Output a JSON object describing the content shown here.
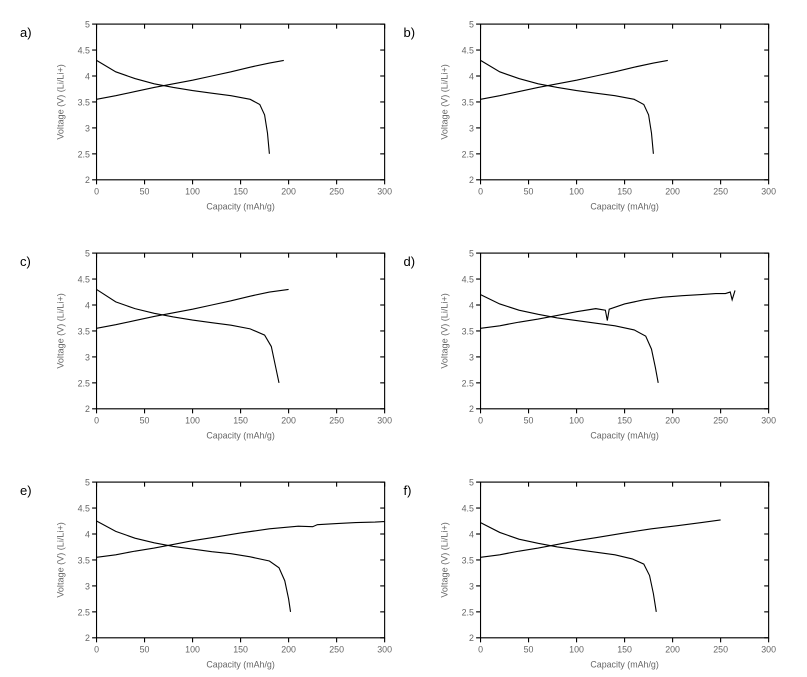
{
  "figure": {
    "layout": {
      "rows": 3,
      "cols": 2,
      "aspect": "landscape-small-multiple"
    },
    "common": {
      "xlabel": "Capacity (mAh/g)",
      "ylabel": "Voltage (V) (Li/Li+)",
      "xlim": [
        0,
        300
      ],
      "ylim": [
        2,
        5
      ],
      "xtick_step": 50,
      "ytick_step": 0.5,
      "xtick_labels": [
        "0",
        "50",
        "100",
        "150",
        "200",
        "250",
        "300"
      ],
      "ytick_labels": [
        "2",
        "2.5",
        "3",
        "3.5",
        "4",
        "4.5",
        "5"
      ],
      "label_fontsize": 8,
      "tick_fontsize": 8,
      "line_color": "#000000",
      "background_color": "#ffffff",
      "line_width": 1
    },
    "panels": [
      {
        "id": "a",
        "label": "a)",
        "curves": [
          {
            "type": "discharge",
            "points": [
              [
                0,
                4.3
              ],
              [
                20,
                4.08
              ],
              [
                40,
                3.95
              ],
              [
                60,
                3.85
              ],
              [
                80,
                3.78
              ],
              [
                100,
                3.72
              ],
              [
                120,
                3.67
              ],
              [
                140,
                3.62
              ],
              [
                160,
                3.55
              ],
              [
                170,
                3.45
              ],
              [
                175,
                3.25
              ],
              [
                178,
                2.9
              ],
              [
                180,
                2.5
              ]
            ]
          },
          {
            "type": "charge",
            "points": [
              [
                0,
                3.55
              ],
              [
                20,
                3.62
              ],
              [
                40,
                3.7
              ],
              [
                60,
                3.78
              ],
              [
                80,
                3.85
              ],
              [
                100,
                3.92
              ],
              [
                120,
                4.0
              ],
              [
                140,
                4.08
              ],
              [
                160,
                4.17
              ],
              [
                180,
                4.25
              ],
              [
                195,
                4.3
              ]
            ]
          }
        ]
      },
      {
        "id": "b",
        "label": "b)",
        "curves": [
          {
            "type": "discharge",
            "points": [
              [
                0,
                4.3
              ],
              [
                20,
                4.08
              ],
              [
                40,
                3.95
              ],
              [
                60,
                3.85
              ],
              [
                80,
                3.78
              ],
              [
                100,
                3.72
              ],
              [
                120,
                3.67
              ],
              [
                140,
                3.62
              ],
              [
                160,
                3.55
              ],
              [
                170,
                3.45
              ],
              [
                175,
                3.25
              ],
              [
                178,
                2.9
              ],
              [
                180,
                2.5
              ]
            ]
          },
          {
            "type": "charge",
            "points": [
              [
                0,
                3.55
              ],
              [
                20,
                3.62
              ],
              [
                40,
                3.7
              ],
              [
                60,
                3.78
              ],
              [
                80,
                3.85
              ],
              [
                100,
                3.92
              ],
              [
                120,
                4.0
              ],
              [
                140,
                4.08
              ],
              [
                160,
                4.17
              ],
              [
                180,
                4.25
              ],
              [
                195,
                4.3
              ]
            ]
          }
        ]
      },
      {
        "id": "c",
        "label": "c)",
        "curves": [
          {
            "type": "discharge",
            "points": [
              [
                0,
                4.3
              ],
              [
                20,
                4.06
              ],
              [
                40,
                3.93
              ],
              [
                60,
                3.84
              ],
              [
                80,
                3.77
              ],
              [
                100,
                3.71
              ],
              [
                120,
                3.66
              ],
              [
                140,
                3.61
              ],
              [
                160,
                3.54
              ],
              [
                175,
                3.42
              ],
              [
                182,
                3.2
              ],
              [
                186,
                2.85
              ],
              [
                190,
                2.5
              ]
            ]
          },
          {
            "type": "charge",
            "points": [
              [
                0,
                3.55
              ],
              [
                20,
                3.62
              ],
              [
                40,
                3.7
              ],
              [
                60,
                3.78
              ],
              [
                80,
                3.85
              ],
              [
                100,
                3.92
              ],
              [
                120,
                4.0
              ],
              [
                140,
                4.08
              ],
              [
                160,
                4.17
              ],
              [
                180,
                4.25
              ],
              [
                200,
                4.3
              ]
            ]
          }
        ]
      },
      {
        "id": "d",
        "label": "d)",
        "curves": [
          {
            "type": "discharge",
            "points": [
              [
                0,
                4.2
              ],
              [
                20,
                4.02
              ],
              [
                40,
                3.9
              ],
              [
                60,
                3.82
              ],
              [
                80,
                3.75
              ],
              [
                100,
                3.7
              ],
              [
                120,
                3.65
              ],
              [
                140,
                3.6
              ],
              [
                160,
                3.52
              ],
              [
                172,
                3.4
              ],
              [
                178,
                3.15
              ],
              [
                182,
                2.8
              ],
              [
                185,
                2.5
              ]
            ]
          },
          {
            "type": "charge",
            "points": [
              [
                0,
                3.55
              ],
              [
                20,
                3.6
              ],
              [
                40,
                3.67
              ],
              [
                60,
                3.73
              ],
              [
                80,
                3.8
              ],
              [
                100,
                3.87
              ],
              [
                120,
                3.93
              ],
              [
                130,
                3.9
              ],
              [
                132,
                3.7
              ],
              [
                134,
                3.92
              ],
              [
                150,
                4.02
              ],
              [
                170,
                4.1
              ],
              [
                190,
                4.15
              ],
              [
                210,
                4.18
              ],
              [
                230,
                4.2
              ],
              [
                245,
                4.22
              ],
              [
                255,
                4.22
              ],
              [
                260,
                4.25
              ],
              [
                262,
                4.1
              ],
              [
                265,
                4.28
              ]
            ]
          }
        ]
      },
      {
        "id": "e",
        "label": "e)",
        "curves": [
          {
            "type": "discharge",
            "points": [
              [
                0,
                4.25
              ],
              [
                20,
                4.05
              ],
              [
                40,
                3.92
              ],
              [
                60,
                3.83
              ],
              [
                80,
                3.76
              ],
              [
                100,
                3.71
              ],
              [
                120,
                3.66
              ],
              [
                140,
                3.62
              ],
              [
                160,
                3.56
              ],
              [
                180,
                3.48
              ],
              [
                190,
                3.35
              ],
              [
                196,
                3.1
              ],
              [
                200,
                2.75
              ],
              [
                202,
                2.5
              ]
            ]
          },
          {
            "type": "charge",
            "points": [
              [
                0,
                3.55
              ],
              [
                20,
                3.6
              ],
              [
                40,
                3.67
              ],
              [
                60,
                3.73
              ],
              [
                80,
                3.8
              ],
              [
                100,
                3.87
              ],
              [
                120,
                3.93
              ],
              [
                150,
                4.02
              ],
              [
                180,
                4.1
              ],
              [
                210,
                4.15
              ],
              [
                225,
                4.14
              ],
              [
                230,
                4.18
              ],
              [
                250,
                4.2
              ],
              [
                270,
                4.22
              ],
              [
                290,
                4.23
              ],
              [
                300,
                4.24
              ]
            ]
          }
        ]
      },
      {
        "id": "f",
        "label": "f)",
        "curves": [
          {
            "type": "discharge",
            "points": [
              [
                0,
                4.22
              ],
              [
                20,
                4.03
              ],
              [
                40,
                3.9
              ],
              [
                60,
                3.82
              ],
              [
                80,
                3.75
              ],
              [
                100,
                3.7
              ],
              [
                120,
                3.65
              ],
              [
                140,
                3.6
              ],
              [
                158,
                3.52
              ],
              [
                170,
                3.42
              ],
              [
                176,
                3.2
              ],
              [
                180,
                2.85
              ],
              [
                183,
                2.5
              ]
            ]
          },
          {
            "type": "charge",
            "points": [
              [
                0,
                3.55
              ],
              [
                20,
                3.6
              ],
              [
                40,
                3.67
              ],
              [
                60,
                3.73
              ],
              [
                80,
                3.8
              ],
              [
                100,
                3.87
              ],
              [
                120,
                3.93
              ],
              [
                150,
                4.02
              ],
              [
                178,
                4.1
              ],
              [
                205,
                4.16
              ],
              [
                230,
                4.22
              ],
              [
                250,
                4.27
              ]
            ]
          }
        ]
      }
    ]
  }
}
